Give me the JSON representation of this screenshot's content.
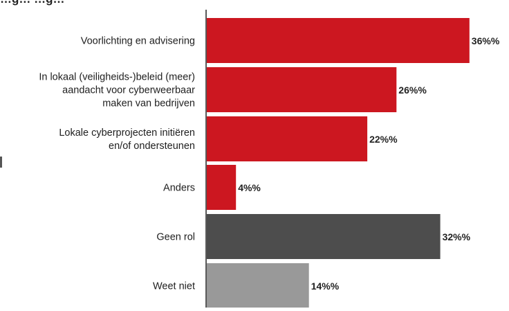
{
  "chart_data": {
    "type": "bar",
    "orientation": "horizontal",
    "title": "…g… …g…",
    "categories": [
      [
        "Voorlichting en advisering"
      ],
      [
        "In lokaal (veiligheids-)beleid (meer)",
        "aandacht voor cyberweerbaar",
        "maken van bedrijven"
      ],
      [
        "Lokale cyberprojecten initiëren",
        "en/of ondersteunen"
      ],
      [
        "Anders"
      ],
      [
        "Geen rol"
      ],
      [
        "Weet niet"
      ]
    ],
    "values": [
      36,
      26,
      22,
      4,
      32,
      14
    ],
    "value_labels": [
      "36%%",
      "26%%",
      "22%%",
      "4%%",
      "32%%",
      "14%%"
    ],
    "bar_colors": [
      "#cc1720",
      "#cc1720",
      "#cc1720",
      "#cc1720",
      "#4d4d4d",
      "#999999"
    ],
    "xlim": [
      0,
      40
    ],
    "grid": false,
    "legend": "none"
  }
}
